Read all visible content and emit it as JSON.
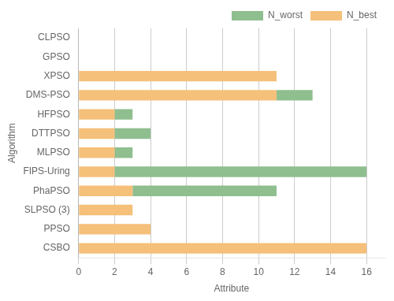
{
  "chart_data": {
    "type": "bar",
    "orientation": "horizontal",
    "stacked": true,
    "categories": [
      "CSBO",
      "PPSO",
      "SLPSO (3)",
      "PhaPSO",
      "FIPS-Uring",
      "MLPSO",
      "DTTPSO",
      "HFPSO",
      "DMS-PSO",
      "XPSO",
      "GPSO",
      "CLPSO"
    ],
    "series": [
      {
        "name": "N_best",
        "color": "#f5c07a",
        "values": [
          16,
          4,
          3,
          3,
          2,
          2,
          2,
          2,
          11,
          11,
          0,
          0
        ]
      },
      {
        "name": "N_worst",
        "color": "#8fbe8f",
        "values": [
          0,
          0,
          0,
          8,
          14,
          1,
          2,
          1,
          2,
          0,
          0,
          0
        ]
      }
    ],
    "x_label": "Attribute",
    "y_label": "Algorithm",
    "xlim": [
      0,
      17
    ],
    "xticks": [
      0,
      2,
      4,
      6,
      8,
      10,
      12,
      14,
      16
    ],
    "grid": true,
    "legend": "upper right"
  }
}
